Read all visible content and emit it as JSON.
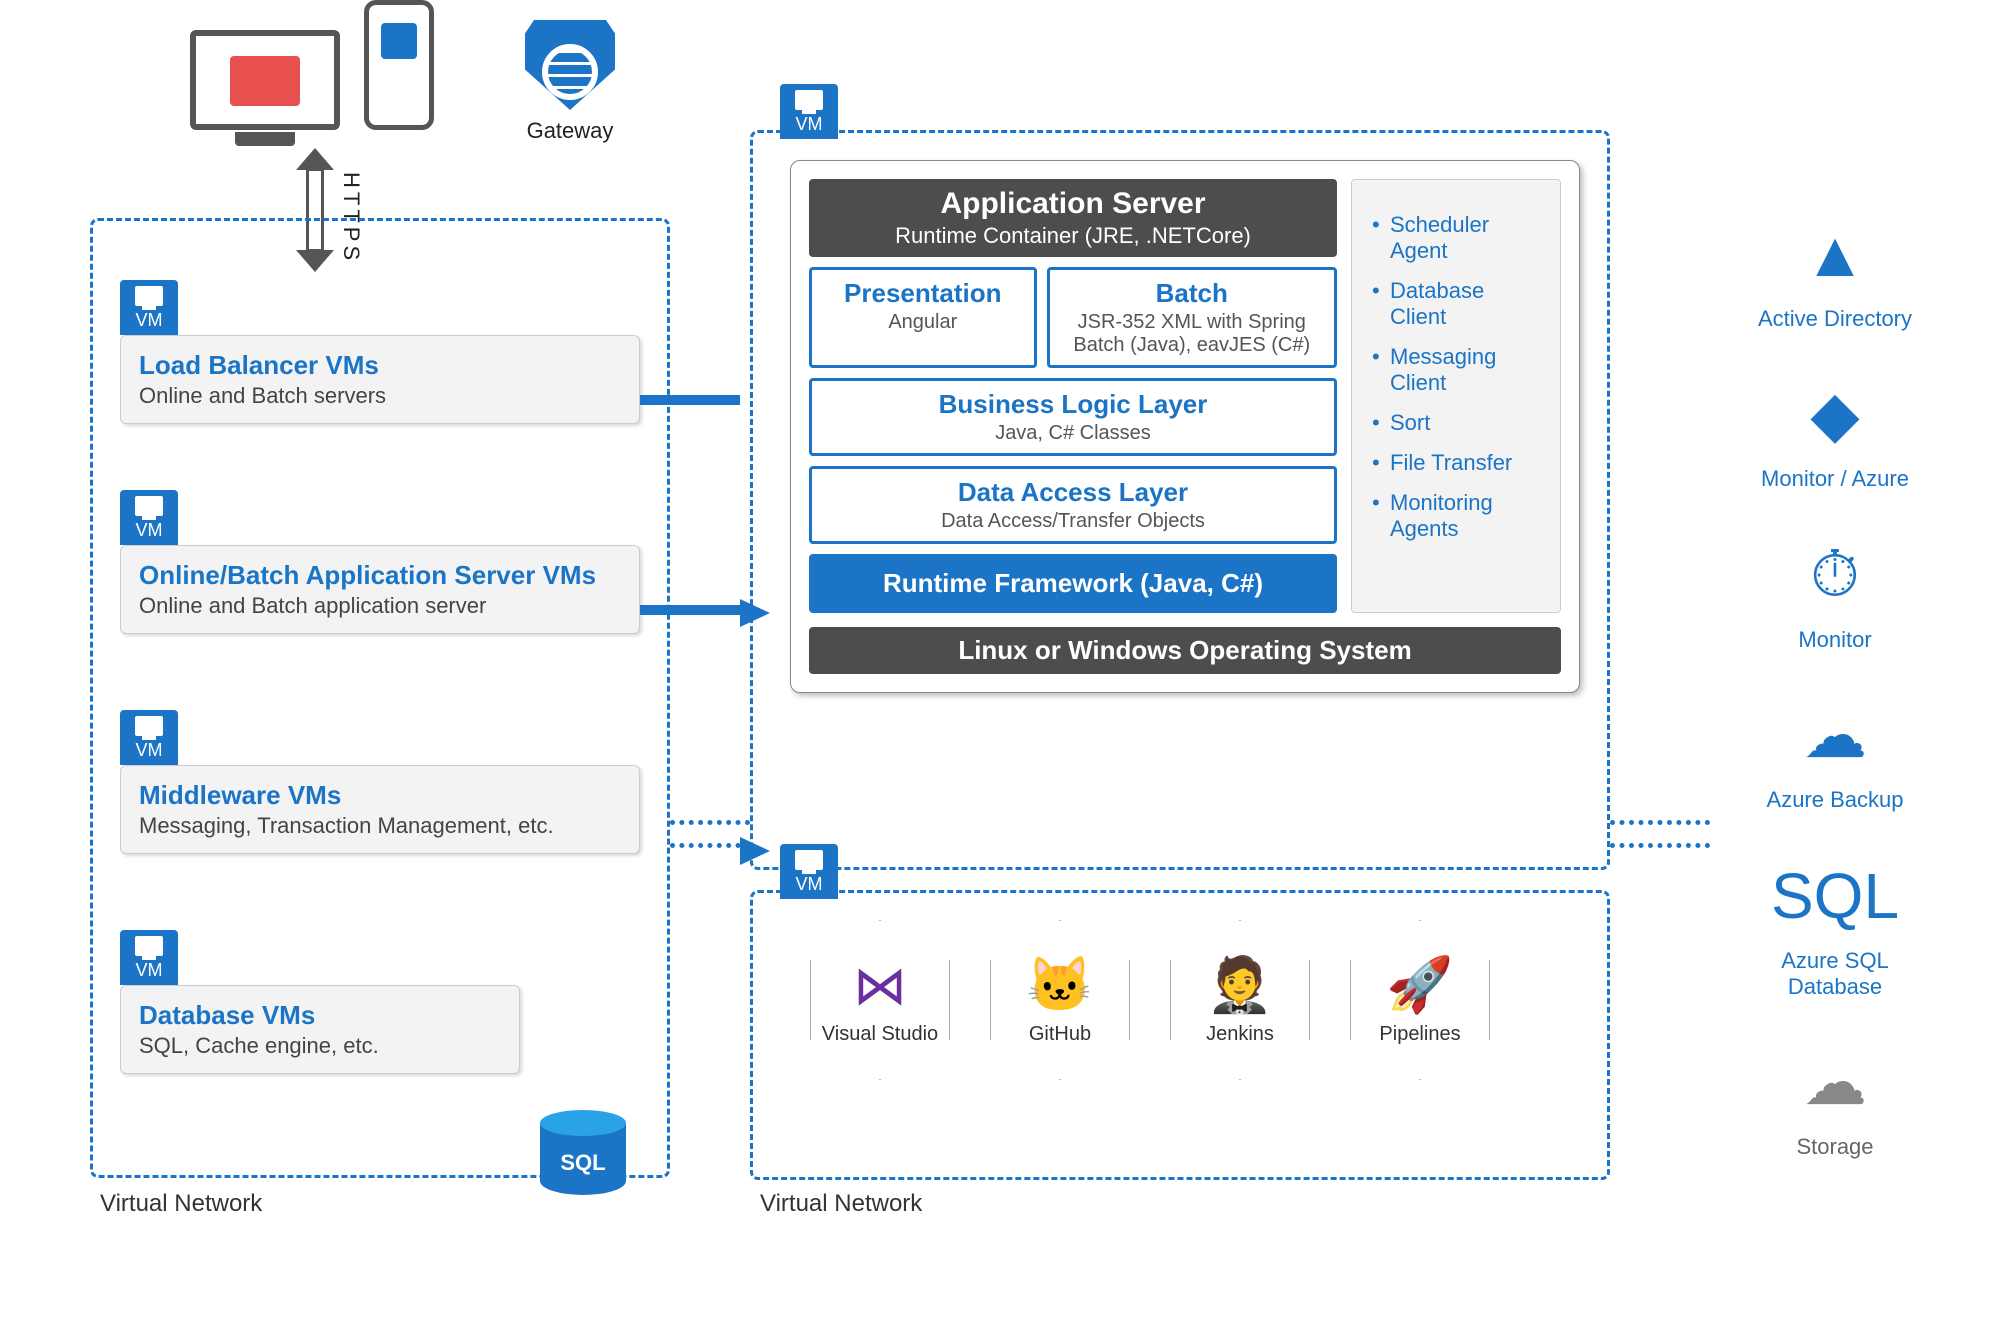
{
  "colors": {
    "azure_blue": "#1b74c5",
    "dark_grey": "#4d4d4d",
    "panel_grey": "#f3f3f3",
    "text_grey": "#555555",
    "accent_red": "#e84f4f"
  },
  "diagram": {
    "devices_label": "",
    "https_label": "HTTPS",
    "gateway_label": "Gateway",
    "peering_label": "",
    "left_vnet": {
      "label": "Virtual Network",
      "vms": [
        {
          "title": "Load Balancer VMs",
          "subtitle": "Online and Batch servers"
        },
        {
          "title": "Online/Batch Application Server VMs",
          "subtitle": "Online and Batch application server"
        },
        {
          "title": "Middleware VMs",
          "subtitle": "Messaging, Transaction Management, etc."
        },
        {
          "title": "Database VMs",
          "subtitle": "SQL, Cache engine, etc."
        }
      ],
      "sql_badge": "SQL"
    },
    "right_vnet_top": {
      "vm_badge": "VM",
      "app_server": {
        "header_title": "Application Server",
        "header_sub": "Runtime Container (JRE, .NETCore)",
        "presentation": {
          "title": "Presentation",
          "subtitle": "Angular"
        },
        "batch": {
          "title": "Batch",
          "subtitle": "JSR-352 XML with Spring Batch (Java), eavJES (C#)"
        },
        "bll": {
          "title": "Business Logic Layer",
          "subtitle": "Java, C# Classes"
        },
        "dal": {
          "title": "Data Access Layer",
          "subtitle": "Data Access/Transfer Objects"
        },
        "runtime": "Runtime Framework (Java, C#)",
        "os_bar": "Linux or Windows Operating System",
        "agents": [
          "Scheduler Agent",
          "Database Client",
          "Messaging Client",
          "Sort",
          "File Transfer",
          "Monitoring Agents"
        ]
      }
    },
    "right_vnet_bottom": {
      "label": "Virtual Network",
      "vm_badge": "VM",
      "tools": [
        {
          "name": "Visual Studio",
          "glyph": "⋈",
          "glyph_color": "#6b2fa0"
        },
        {
          "name": "GitHub",
          "glyph": "🐱",
          "glyph_color": "#000000"
        },
        {
          "name": "Jenkins",
          "glyph": "🤵",
          "glyph_color": "#c8102e"
        },
        {
          "name": "Pipelines",
          "glyph": "🚀",
          "glyph_color": "#1b74c5"
        }
      ]
    },
    "services": [
      {
        "label": "Active Directory",
        "glyph": "▲",
        "color": "#1b74c5"
      },
      {
        "label": "Monitor / Azure",
        "glyph": "◆",
        "color": "#1b74c5"
      },
      {
        "label": "Monitor",
        "glyph": "⏱",
        "color": "#1b74c5"
      },
      {
        "label": "Azure Backup",
        "glyph": "☁",
        "color": "#1b74c5"
      },
      {
        "label": "Azure SQL Database",
        "glyph": "SQL",
        "color": "#1b74c5"
      },
      {
        "label": "Storage",
        "glyph": "☁",
        "color": "#888888",
        "grey": true
      }
    ]
  }
}
